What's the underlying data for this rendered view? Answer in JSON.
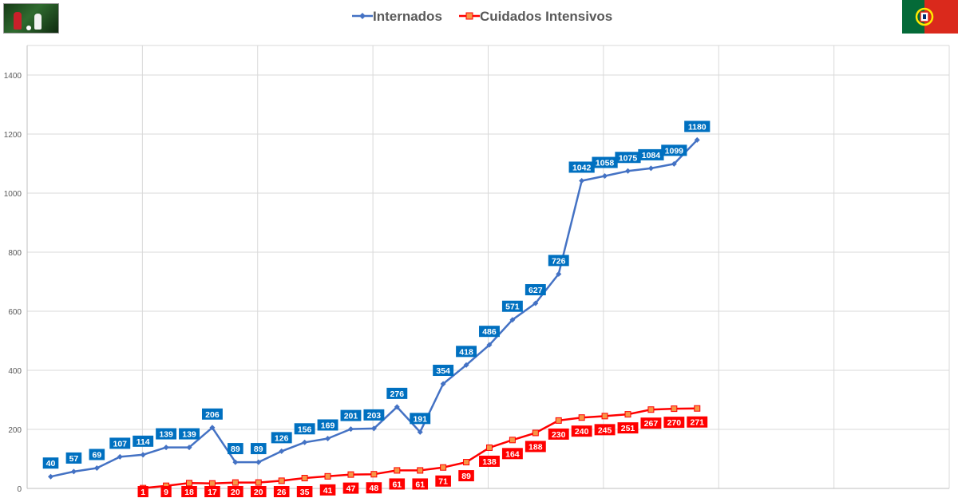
{
  "chart_data": {
    "type": "line",
    "title": "",
    "xlabel": "",
    "ylabel": "",
    "ylim": [
      0,
      1500
    ],
    "yticks": [
      0,
      200,
      400,
      600,
      800,
      1000,
      1200,
      1400
    ],
    "grid": true,
    "legend_position": "top-center",
    "series": [
      {
        "name": "Internados",
        "color": "#4472c4",
        "label_color": "#0070c0",
        "marker": "diamond",
        "start_index": 0,
        "values": [
          40,
          57,
          69,
          107,
          114,
          139,
          139,
          206,
          89,
          89,
          126,
          156,
          169,
          201,
          203,
          276,
          191,
          354,
          418,
          486,
          571,
          627,
          726,
          1042,
          1058,
          1075,
          1084,
          1099,
          1180
        ]
      },
      {
        "name": "Cuidados Intensivos",
        "color": "#ff0000",
        "label_color": "#ff0000",
        "marker": "square",
        "start_index": 4,
        "values": [
          1,
          9,
          18,
          17,
          20,
          20,
          26,
          35,
          41,
          47,
          48,
          61,
          61,
          71,
          89,
          138,
          164,
          188,
          230,
          240,
          245,
          251,
          267,
          270,
          271
        ]
      }
    ]
  },
  "branding": {
    "left_logo_icon": "football-players-logo",
    "right_flag_icon": "portugal-flag-icon"
  }
}
